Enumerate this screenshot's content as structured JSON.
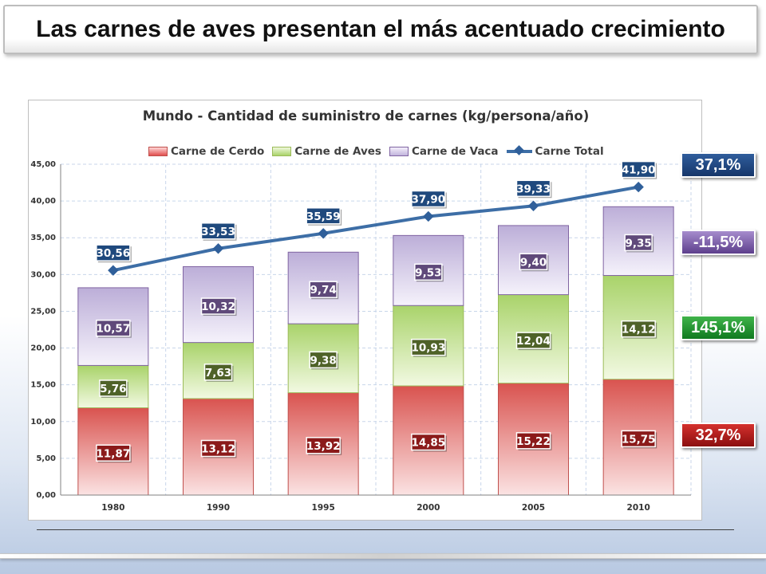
{
  "slide": {
    "title": "Las carnes de aves presentan el más acentuado crecimiento"
  },
  "badges": {
    "total": "37,1%",
    "vaca": "-11,5%",
    "aves": "145,1%",
    "cerdo": "32,7%"
  },
  "colors": {
    "cerdo": "#c0504d",
    "aves": "#9bbb59",
    "vaca": "#8064a2",
    "total": "#3d6ea6",
    "label_bg_cerdo": "#8b1a1a",
    "label_bg_aves": "#4f6228",
    "label_bg_vaca": "#5f497a",
    "label_bg_total": "#1f497d"
  },
  "chart_data": {
    "type": "bar",
    "stacked": true,
    "title": "Mundo - Cantidad de suministro de carnes (kg/persona/año)",
    "categories": [
      "1980",
      "1990",
      "1995",
      "2000",
      "2005",
      "2010"
    ],
    "series": [
      {
        "name": "Carne de Cerdo",
        "values": [
          11.87,
          13.12,
          13.92,
          14.85,
          15.22,
          15.75
        ],
        "labels": [
          "11,87",
          "13,12",
          "13,92",
          "14,85",
          "15,22",
          "15,75"
        ]
      },
      {
        "name": "Carne de Aves",
        "values": [
          5.76,
          7.63,
          9.38,
          10.93,
          12.04,
          14.12
        ],
        "labels": [
          "5,76",
          "7,63",
          "9,38",
          "10,93",
          "12,04",
          "14,12"
        ]
      },
      {
        "name": "Carne de Vaca",
        "values": [
          10.57,
          10.32,
          9.74,
          9.53,
          9.4,
          9.35
        ],
        "labels": [
          "10,57",
          "10,32",
          "9,74",
          "9,53",
          "9,40",
          "9,35"
        ]
      }
    ],
    "line": {
      "name": "Carne Total",
      "type": "line",
      "values": [
        30.56,
        33.53,
        35.59,
        37.9,
        39.33,
        41.9
      ],
      "labels": [
        "30,56",
        "33,53",
        "35,59",
        "37,90",
        "39,33",
        "41,90"
      ]
    },
    "ylim": [
      0,
      45
    ],
    "yticks": [
      "0,00",
      "5,00",
      "10,00",
      "15,00",
      "20,00",
      "25,00",
      "30,00",
      "35,00",
      "40,00",
      "45,00"
    ],
    "grid": true,
    "legend": "top"
  }
}
